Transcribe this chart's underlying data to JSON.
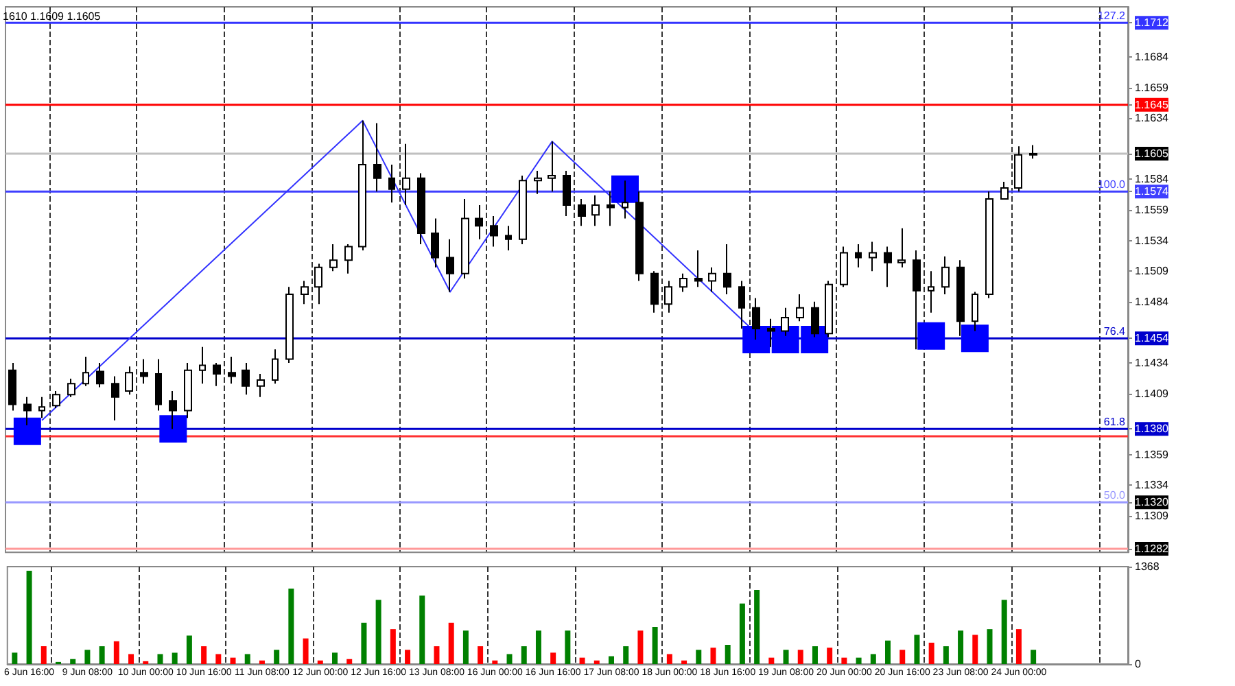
{
  "chart_data": [
    {
      "type": "candlestick",
      "color": "#000000",
      "annotations": [
        "1610 1.1609 1.1605",
        {
          "text": "127.2",
          "y": 1.1712
        },
        {
          "text": "100.0",
          "y": 1.1574
        },
        {
          "text": "76.4",
          "y": 1.1454
        },
        {
          "text": "61.8",
          "y": 1.138
        },
        {
          "text": "50.0",
          "y": 1.132
        }
      ],
      "categories": [
        null,
        null,
        null,
        null,
        null,
        null,
        null,
        null,
        null,
        null,
        null,
        null,
        null,
        null,
        null,
        null,
        null,
        null,
        null,
        null,
        null,
        null,
        null,
        null,
        null,
        null,
        null,
        null,
        null,
        null,
        null,
        null,
        null,
        null,
        null,
        null,
        null,
        null,
        null,
        null,
        null,
        null,
        null,
        null,
        null,
        null,
        null,
        null,
        null,
        null,
        null,
        null,
        null,
        null,
        null,
        null,
        null,
        null,
        null,
        null,
        null,
        null,
        null,
        null,
        null,
        null,
        null,
        null,
        null,
        null,
        null,
        null,
        null,
        null,
        null,
        null,
        null
      ],
      "ohlc": [
        [
          1.1428,
          1.1434,
          1.1395,
          1.14
        ],
        [
          1.14,
          1.1406,
          1.1383,
          1.1395
        ],
        [
          1.1395,
          1.1406,
          1.1389,
          1.1398
        ],
        [
          1.1399,
          1.1411,
          1.1397,
          1.1408
        ],
        [
          1.1408,
          1.1421,
          1.1406,
          1.1417
        ],
        [
          1.1417,
          1.1439,
          1.1415,
          1.1426
        ],
        [
          1.1427,
          1.1434,
          1.1414,
          1.1417
        ],
        [
          1.1417,
          1.1423,
          1.1387,
          1.1406
        ],
        [
          1.1411,
          1.1431,
          1.1408,
          1.1426
        ],
        [
          1.1426,
          1.1437,
          1.1417,
          1.1423
        ],
        [
          1.1425,
          1.1437,
          1.1395,
          1.14
        ],
        [
          1.1403,
          1.1411,
          1.138,
          1.1395
        ],
        [
          1.1395,
          1.1434,
          1.1389,
          1.1428
        ],
        [
          1.1428,
          1.1447,
          1.1417,
          1.1432
        ],
        [
          1.1432,
          1.1434,
          1.1415,
          1.1425
        ],
        [
          1.1426,
          1.1439,
          1.1417,
          1.1423
        ],
        [
          1.1428,
          1.1434,
          1.1408,
          1.1415
        ],
        [
          1.1415,
          1.1425,
          1.1406,
          1.142
        ],
        [
          1.142,
          1.1445,
          1.1417,
          1.1437
        ],
        [
          1.1437,
          1.1496,
          1.1434,
          1.149
        ],
        [
          1.149,
          1.1501,
          1.1482,
          1.1496
        ],
        [
          1.1496,
          1.1515,
          1.1482,
          1.1512
        ],
        [
          1.1512,
          1.1531,
          1.1509,
          1.1518
        ],
        [
          1.1518,
          1.1531,
          1.1507,
          1.1529
        ],
        [
          1.1529,
          1.1632,
          1.1526,
          1.1596
        ],
        [
          1.1596,
          1.163,
          1.1574,
          1.1585
        ],
        [
          1.1585,
          1.1596,
          1.1565,
          1.1576
        ],
        [
          1.1576,
          1.1613,
          1.1563,
          1.1585
        ],
        [
          1.1585,
          1.1589,
          1.1531,
          1.154
        ],
        [
          1.154,
          1.1552,
          1.1512,
          1.152
        ],
        [
          1.152,
          1.1535,
          1.1492,
          1.1507
        ],
        [
          1.1507,
          1.1568,
          1.1503,
          1.1552
        ],
        [
          1.1552,
          1.1563,
          1.1535,
          1.1546
        ],
        [
          1.1546,
          1.1554,
          1.1529,
          1.1538
        ],
        [
          1.1538,
          1.1546,
          1.1526,
          1.1535
        ],
        [
          1.1535,
          1.1587,
          1.1531,
          1.1583
        ],
        [
          1.1583,
          1.1591,
          1.1572,
          1.1585
        ],
        [
          1.1585,
          1.1615,
          1.1574,
          1.1587
        ],
        [
          1.1587,
          1.1591,
          1.1554,
          1.1563
        ],
        [
          1.1563,
          1.1568,
          1.1546,
          1.1554
        ],
        [
          1.1555,
          1.1571,
          1.1546,
          1.1563
        ],
        [
          1.1563,
          1.1574,
          1.1546,
          1.1561
        ],
        [
          1.1561,
          1.1583,
          1.1552,
          1.1565
        ],
        [
          1.1565,
          1.1574,
          1.1501,
          1.1507
        ],
        [
          1.1507,
          1.1509,
          1.1475,
          1.1482
        ],
        [
          1.1482,
          1.1501,
          1.1475,
          1.1496
        ],
        [
          1.1496,
          1.1507,
          1.1492,
          1.1503
        ],
        [
          1.1503,
          1.1526,
          1.1496,
          1.1501
        ],
        [
          1.1501,
          1.1512,
          1.1492,
          1.1507
        ],
        [
          1.1507,
          1.1531,
          1.149,
          1.1496
        ],
        [
          1.1496,
          1.1501,
          1.1462,
          1.1479
        ],
        [
          1.1479,
          1.1487,
          1.1453,
          1.1462
        ],
        [
          1.1462,
          1.147,
          1.1447,
          1.146
        ],
        [
          1.146,
          1.1479,
          1.1456,
          1.1471
        ],
        [
          1.1471,
          1.149,
          1.1468,
          1.1479
        ],
        [
          1.1479,
          1.1484,
          1.1455,
          1.1458
        ],
        [
          1.1458,
          1.1501,
          1.1455,
          1.1498
        ],
        [
          1.1498,
          1.1529,
          1.1496,
          1.1524
        ],
        [
          1.1524,
          1.1531,
          1.1512,
          1.152
        ],
        [
          1.152,
          1.1533,
          1.1509,
          1.1524
        ],
        [
          1.1524,
          1.1529,
          1.1496,
          1.1516
        ],
        [
          1.1516,
          1.1544,
          1.1512,
          1.1518
        ],
        [
          1.1518,
          1.1526,
          1.1445,
          1.1493
        ],
        [
          1.1493,
          1.1509,
          1.1475,
          1.1496
        ],
        [
          1.1496,
          1.1521,
          1.149,
          1.1512
        ],
        [
          1.1512,
          1.1518,
          1.1456,
          1.1468
        ],
        [
          1.1468,
          1.1492,
          1.146,
          1.149
        ],
        [
          1.149,
          1.1574,
          1.1487,
          1.1568
        ],
        [
          1.1568,
          1.1582,
          1.1568,
          1.1577
        ],
        [
          1.1577,
          1.1611,
          1.1574,
          1.1604
        ],
        [
          1.1604,
          1.1612,
          1.1601,
          1.1605
        ],
        null,
        null,
        null,
        null,
        null,
        null
      ],
      "series": [
        {
          "type": "line",
          "color": "#3333ff",
          "values": [
            null,
            null,
            1.1387,
            null,
            null,
            null,
            null,
            null,
            null,
            null,
            null,
            null,
            null,
            null,
            null,
            null,
            null,
            null,
            null,
            null,
            null,
            null,
            null,
            null,
            1.1632,
            null,
            null,
            null,
            null,
            null,
            1.1492,
            null,
            null,
            null,
            null,
            null,
            null,
            1.1615,
            null,
            null,
            null,
            null,
            null,
            null,
            null,
            null,
            null,
            null,
            null,
            null,
            null,
            null,
            1.1447,
            null,
            null,
            null,
            null,
            null,
            null,
            null,
            null,
            null,
            null,
            null,
            null,
            null,
            null,
            null,
            null,
            null,
            null,
            null,
            null,
            null,
            null,
            null,
            null
          ]
        },
        {
          "type": "scatter",
          "color": "#0000ff",
          "marker": "square",
          "values": [
            null,
            1.1378,
            null,
            null,
            null,
            null,
            null,
            null,
            null,
            null,
            null,
            1.138,
            null,
            null,
            null,
            null,
            null,
            null,
            null,
            null,
            null,
            null,
            null,
            null,
            null,
            null,
            null,
            null,
            null,
            null,
            null,
            null,
            null,
            null,
            null,
            null,
            null,
            null,
            null,
            null,
            null,
            null,
            1.1576,
            null,
            null,
            null,
            null,
            null,
            null,
            null,
            null,
            1.1453,
            null,
            1.1453,
            null,
            1.1453,
            null,
            null,
            null,
            null,
            null,
            null,
            null,
            1.1456,
            null,
            null,
            1.1454,
            null,
            null,
            null,
            null,
            null,
            null,
            null,
            null,
            null,
            null
          ]
        }
      ],
      "ylim": [
        1.1279,
        1.1725
      ],
      "yticks": [
        {
          "value": 1.1282,
          "label": "1.1282"
        },
        1.1309,
        {
          "value": 1.132,
          "label": "1.1320"
        },
        1.1334,
        1.1359,
        {
          "value": 1.138,
          "label": "1.1380"
        },
        1.1409,
        1.1434,
        1.1454,
        1.1484,
        1.1509,
        1.1534,
        1.1559,
        1.1574,
        1.1584,
        1.1605,
        1.1634,
        1.1645,
        1.1659,
        1.1684,
        1.1712
      ],
      "tick_labels": "y",
      "grid": "x",
      "ref_lines": [
        {
          "axis": "y",
          "value": 1.1712,
          "color": "#3333ff"
        },
        {
          "axis": "y",
          "value": 1.1645,
          "color": "#ff0000"
        },
        {
          "axis": "y",
          "value": 1.1605,
          "color": "#c0c0c0"
        },
        {
          "axis": "y",
          "value": 1.1574,
          "color": "#3f3fff"
        },
        {
          "axis": "y",
          "value": 1.1454,
          "color": "#0000cc"
        },
        {
          "axis": "y",
          "value": 1.1374,
          "color": "#ff3030"
        },
        {
          "axis": "y",
          "value": 1.138,
          "color": "#0000cc"
        },
        {
          "axis": "y",
          "value": 1.132,
          "color": "#9999ff"
        },
        {
          "axis": "y",
          "value": 1.1282,
          "color": "#ff9999"
        }
      ]
    },
    {
      "type": "bar",
      "categories": [
        null,
        "6 Jun 16:00",
        null,
        null,
        null,
        "9 Jun 08:00",
        null,
        null,
        null,
        "10 Jun 00:00",
        null,
        null,
        null,
        "10 Jun 16:00",
        null,
        null,
        null,
        "11 Jun 08:00",
        null,
        null,
        null,
        "12 Jun 00:00",
        null,
        null,
        null,
        "12 Jun 16:00",
        null,
        null,
        null,
        "13 Jun 08:00",
        null,
        null,
        null,
        "16 Jun 00:00",
        null,
        null,
        null,
        "16 Jun 16:00",
        null,
        null,
        null,
        "17 Jun 08:00",
        null,
        null,
        null,
        "18 Jun 00:00",
        null,
        null,
        null,
        "18 Jun 16:00",
        null,
        null,
        null,
        "19 Jun 08:00",
        null,
        null,
        null,
        "20 Jun 00:00",
        null,
        null,
        null,
        "20 Jun 16:00",
        null,
        null,
        null,
        "23 Jun 08:00",
        null,
        null,
        null,
        "24 Jun 00:00",
        null,
        null,
        null,
        null,
        null,
        null,
        null
      ],
      "values": [
        160,
        1310,
        250,
        30,
        70,
        200,
        250,
        320,
        140,
        40,
        140,
        160,
        400,
        250,
        140,
        90,
        140,
        50,
        200,
        1060,
        360,
        50,
        160,
        70,
        580,
        900,
        490,
        200,
        960,
        250,
        580,
        470,
        250,
        50,
        140,
        250,
        470,
        160,
        470,
        90,
        50,
        110,
        250,
        470,
        520,
        140,
        50,
        200,
        230,
        270,
        850,
        1040,
        90,
        200,
        200,
        250,
        230,
        90,
        90,
        140,
        330,
        200,
        410,
        300,
        250,
        470,
        410,
        490,
        900,
        490,
        200,
        null,
        null,
        null,
        null,
        null,
        null
      ],
      "colors": [
        "#008000",
        "#008000",
        "#ff0000",
        "#008000",
        "#008000",
        "#008000",
        "#008000",
        "#ff0000",
        "#ff0000",
        "#ff0000",
        "#008000",
        "#008000",
        "#008000",
        "#ff0000",
        "#ff0000",
        "#ff0000",
        "#008000",
        "#ff0000",
        "#008000",
        "#008000",
        "#ff0000",
        "#ff0000",
        "#008000",
        "#ff0000",
        "#008000",
        "#008000",
        "#ff0000",
        "#ff0000",
        "#008000",
        "#ff0000",
        "#ff0000",
        "#008000",
        "#ff0000",
        "#ff0000",
        "#008000",
        "#008000",
        "#008000",
        "#ff0000",
        "#008000",
        "#ff0000",
        "#ff0000",
        "#008000",
        "#008000",
        "#ff0000",
        "#008000",
        "#ff0000",
        "#ff0000",
        "#008000",
        "#ff0000",
        "#008000",
        "#008000",
        "#008000",
        "#ff0000",
        "#008000",
        "#ff0000",
        "#008000",
        "#ff0000",
        "#ff0000",
        "#008000",
        "#008000",
        "#008000",
        "#ff0000",
        "#008000",
        "#ff0000",
        "#008000",
        "#008000",
        "#ff0000",
        "#008000",
        "#008000",
        "#ff0000",
        "#008000",
        null,
        null,
        null,
        null,
        null,
        null
      ],
      "ylim": [
        0,
        1368
      ],
      "yticks": [
        0,
        1368
      ],
      "grid": "x"
    }
  ]
}
